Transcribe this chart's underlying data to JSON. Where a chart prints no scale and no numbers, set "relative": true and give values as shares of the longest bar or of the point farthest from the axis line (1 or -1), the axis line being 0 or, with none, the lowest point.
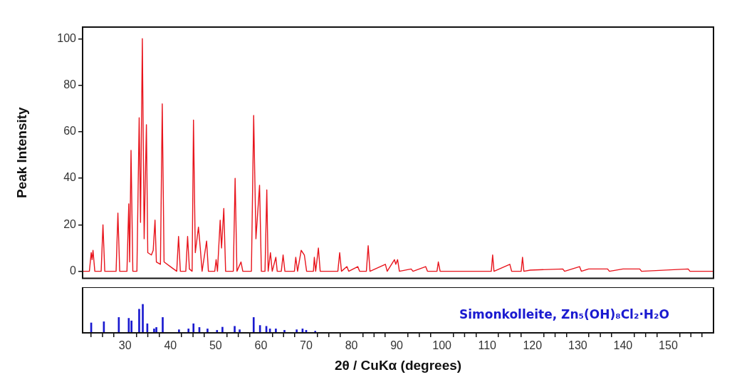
{
  "chart_data": [
    {
      "type": "line",
      "ylabel": "Peak Intensity",
      "xlim": [
        20.6,
        160
      ],
      "ylim": [
        -3,
        105
      ],
      "yticks": [
        0,
        20,
        40,
        60,
        80,
        100
      ],
      "tick_labels": "y",
      "grid": false,
      "marker": "none",
      "line_style": "solid",
      "series": [
        {
          "color": "#e8141c",
          "x": [
            20.6,
            22.1,
            22.5,
            22.7,
            22.9,
            23.3,
            24.7,
            25.1,
            25.5,
            28.0,
            28.4,
            28.8,
            30.4,
            30.8,
            31.0,
            31.3,
            31.7,
            32.6,
            33.1,
            33.4,
            33.8,
            34.2,
            34.7,
            35.0,
            35.8,
            36.2,
            36.6,
            36.9,
            37.8,
            38.2,
            38.6,
            40.0,
            41.4,
            41.8,
            42.2,
            43.4,
            43.8,
            44.2,
            44.8,
            45.1,
            45.5,
            46.2,
            46.6,
            47.0,
            48.0,
            48.4,
            49.8,
            50.1,
            50.4,
            51.0,
            51.3,
            51.8,
            52.2,
            53.9,
            54.3,
            54.7,
            55.6,
            56.0,
            57.9,
            58.4,
            58.9,
            59.7,
            60.1,
            60.9,
            61.3,
            61.6,
            62.1,
            62.5,
            63.3,
            63.6,
            64.5,
            64.9,
            65.3,
            67.4,
            67.7,
            68.1,
            68.9,
            69.6,
            70.1,
            71.6,
            71.8,
            72.1,
            72.7,
            73.1,
            77.0,
            77.4,
            77.8,
            79.0,
            79.4,
            81.4,
            81.8,
            83.3,
            83.7,
            84.1,
            87.5,
            87.9,
            89.5,
            89.8,
            90.2,
            90.6,
            93.2,
            93.6,
            96.4,
            96.8,
            98.9,
            99.2,
            99.6,
            110.9,
            111.2,
            111.5,
            115.0,
            115.4,
            117.5,
            117.8,
            118.1,
            119.5,
            126.7,
            127.1,
            130.4,
            130.8,
            132.4,
            136.6,
            137.0,
            140.0,
            143.7,
            144.1,
            154.4,
            154.8,
            159.9
          ],
          "values": [
            0,
            0,
            8,
            5,
            9,
            0,
            0,
            20,
            0,
            0,
            25,
            0,
            0,
            29,
            4,
            52,
            0,
            0,
            66,
            21,
            100,
            14,
            63,
            8,
            7,
            9,
            22,
            4,
            3,
            72,
            4,
            2,
            0,
            15,
            0,
            0,
            15,
            1,
            0,
            65,
            8,
            19,
            10,
            0,
            13,
            0,
            0,
            5,
            0,
            22,
            10,
            27,
            0,
            0,
            40,
            0,
            4,
            0,
            0,
            67,
            14,
            37,
            0,
            0,
            35,
            0,
            8,
            0,
            6,
            0,
            0,
            7,
            0,
            0,
            6,
            0,
            9,
            7,
            0,
            0,
            6,
            0,
            10,
            0,
            0,
            8,
            0,
            2,
            0,
            2,
            0,
            0,
            11,
            0,
            3,
            0,
            5,
            3,
            5,
            0,
            1,
            0,
            2,
            0,
            0,
            4,
            0,
            0,
            7,
            0,
            3,
            0,
            0,
            6,
            0,
            0.5,
            1,
            0,
            2,
            0,
            1,
            1,
            0,
            1,
            1,
            0,
            1,
            0,
            0
          ]
        }
      ]
    },
    {
      "type": "bar",
      "xlabel": "2θ / CuKα (degrees)",
      "relative": true,
      "xlim": [
        20.6,
        160
      ],
      "tick_labels": "x",
      "annotations": [
        "Simonkolleite, Zn₅(OH)₈Cl₂·H₂O"
      ],
      "xticks": [
        {
          "value": 25,
          "label": null
        },
        30,
        {
          "value": 35,
          "label": null
        },
        40,
        {
          "value": 45,
          "label": null
        },
        50,
        {
          "value": 55,
          "label": null
        },
        60,
        {
          "value": 65,
          "label": null
        },
        70,
        {
          "value": 75,
          "label": null
        },
        80,
        {
          "value": 85,
          "label": null
        },
        90,
        {
          "value": 95,
          "label": null
        },
        100,
        {
          "value": 105,
          "label": null
        },
        110,
        {
          "value": 115,
          "label": null
        },
        120,
        {
          "value": 125,
          "label": null
        },
        130,
        {
          "value": 135,
          "label": null
        },
        140,
        {
          "value": 145,
          "label": null
        },
        150,
        {
          "value": 155,
          "label": null
        }
      ],
      "series": [
        {
          "color": "#1a1ad0",
          "x": [
            22.5,
            25.3,
            28.6,
            30.8,
            31.4,
            33.1,
            33.9,
            34.9,
            36.4,
            36.9,
            38.3,
            41.9,
            44.0,
            45.1,
            46.4,
            48.2,
            50.3,
            51.5,
            54.2,
            55.3,
            58.4,
            59.8,
            61.2,
            62.0,
            63.3,
            65.2,
            67.9,
            69.2,
            70.0,
            72.0
          ],
          "values": [
            0.35,
            0.39,
            0.54,
            0.51,
            0.42,
            0.83,
            1,
            0.32,
            0.14,
            0.19,
            0.54,
            0.11,
            0.14,
            0.32,
            0.19,
            0.14,
            0.09,
            0.2,
            0.23,
            0.11,
            0.54,
            0.26,
            0.23,
            0.14,
            0.14,
            0.09,
            0.11,
            0.14,
            0.09,
            0.06
          ]
        }
      ]
    }
  ]
}
